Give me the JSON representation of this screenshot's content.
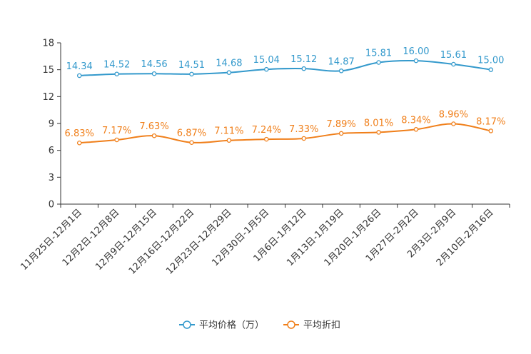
{
  "chart_data": {
    "type": "line",
    "title": "",
    "xlabel": "",
    "ylabel": "",
    "ylim": [
      0,
      18
    ],
    "yticks": [
      0,
      3,
      6,
      9,
      12,
      15,
      18
    ],
    "grid": false,
    "legend_position": "bottom",
    "categories": [
      "11月25日-12月1日",
      "12月2日-12月8日",
      "12月9日-12月15日",
      "12月16日-12月22日",
      "12月23日-12月29日",
      "12月30日-1月5日",
      "1月6日-1月12日",
      "1月13日-1月19日",
      "1月20日-1月26日",
      "1月27日-2月2日",
      "2月3日-2月9日",
      "2月10日-2月16日"
    ],
    "series": [
      {
        "name": "平均价格（万）",
        "color": "#3399cc",
        "values": [
          14.34,
          14.52,
          14.56,
          14.51,
          14.68,
          15.04,
          15.12,
          14.87,
          15.81,
          16.0,
          15.61,
          15.0
        ],
        "labels": [
          "14.34",
          "14.52",
          "14.56",
          "14.51",
          "14.68",
          "15.04",
          "15.12",
          "14.87",
          "15.81",
          "16.00",
          "15.61",
          "15.00"
        ]
      },
      {
        "name": "平均折扣",
        "color": "#f07f1a",
        "values": [
          6.83,
          7.17,
          7.63,
          6.87,
          7.11,
          7.24,
          7.33,
          7.89,
          8.01,
          8.34,
          8.96,
          8.17
        ],
        "labels": [
          "6.83%",
          "7.17%",
          "7.63%",
          "6.87%",
          "7.11%",
          "7.24%",
          "7.33%",
          "7.89%",
          "8.01%",
          "8.34%",
          "8.96%",
          "8.17%"
        ]
      }
    ]
  }
}
